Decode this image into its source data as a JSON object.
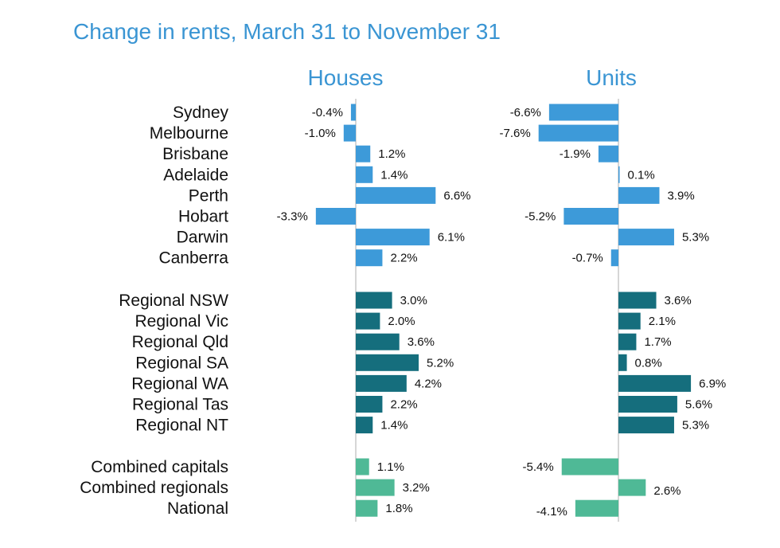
{
  "title": "Change in rents, March 31 to November 31",
  "panels": [
    "Houses",
    "Units"
  ],
  "colors": {
    "title": "#3a95d3",
    "capitals": "#3d9ad9",
    "regional": "#156e7d",
    "combined": "#4fb996",
    "axis": "#c8c8c8"
  },
  "chart_data": {
    "type": "bar",
    "orientation": "horizontal",
    "title": "Change in rents, March 31 to November 31",
    "categories": [
      "Sydney",
      "Melbourne",
      "Brisbane",
      "Adelaide",
      "Perth",
      "Hobart",
      "Darwin",
      "Canberra",
      "Regional NSW",
      "Regional Vic",
      "Regional Qld",
      "Regional SA",
      "Regional WA",
      "Regional Tas",
      "Regional NT",
      "Combined capitals",
      "Combined regionals",
      "National"
    ],
    "groups": [
      {
        "categories": [
          "Sydney",
          "Melbourne",
          "Brisbane",
          "Adelaide",
          "Perth",
          "Hobart",
          "Darwin",
          "Canberra"
        ],
        "color": "#3d9ad9"
      },
      {
        "categories": [
          "Regional NSW",
          "Regional Vic",
          "Regional Qld",
          "Regional SA",
          "Regional WA",
          "Regional Tas",
          "Regional NT"
        ],
        "color": "#156e7d"
      },
      {
        "categories": [
          "Combined capitals",
          "Combined regionals",
          "National"
        ],
        "color": "#4fb996"
      }
    ],
    "series": [
      {
        "name": "Houses",
        "values": [
          -0.4,
          -1.0,
          1.2,
          1.4,
          6.6,
          -3.3,
          6.1,
          2.2,
          3.0,
          2.0,
          3.6,
          5.2,
          4.2,
          2.2,
          1.4,
          1.1,
          3.2,
          1.8
        ],
        "labels": [
          "-0.4%",
          "-1.0%",
          "1.2%",
          "1.4%",
          "6.6%",
          "-3.3%",
          "6.1%",
          "2.2%",
          "3.0%",
          "2.0%",
          "3.6%",
          "5.2%",
          "4.2%",
          "2.2%",
          "1.4%",
          "1.1%",
          "3.2%",
          "1.8%"
        ]
      },
      {
        "name": "Units",
        "values": [
          -6.6,
          -7.6,
          -1.9,
          0.1,
          3.9,
          -5.2,
          5.3,
          -0.7,
          3.6,
          2.1,
          1.7,
          0.8,
          6.9,
          5.6,
          5.3,
          -5.4,
          2.6,
          -4.1
        ],
        "labels": [
          "-6.6%",
          "-7.6%",
          "-1.9%",
          "0.1%",
          "3.9%",
          "-5.2%",
          "5.3%",
          "-0.7%",
          "3.6%",
          "2.1%",
          "1.7%",
          "0.8%",
          "6.9%",
          "5.6%",
          "5.3%",
          "-5.4%",
          "2.6%",
          "-4.1%"
        ]
      }
    ],
    "value_unit": "%",
    "grid": false,
    "legend": "none"
  }
}
